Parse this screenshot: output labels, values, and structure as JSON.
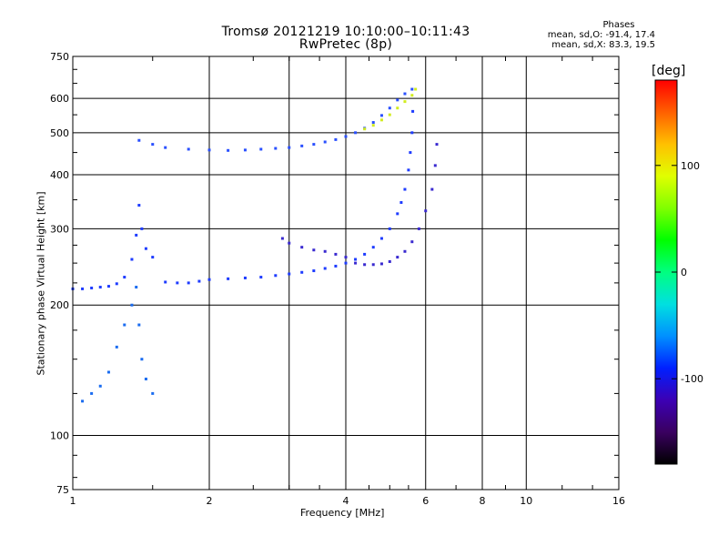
{
  "chart_data": {
    "type": "scatter",
    "title": "Tromsø 20121219 10:10:00–10:11:43",
    "subtitle": "RwPretec (8p)",
    "xlabel": "Frequency [MHz]",
    "ylabel": "Stationary phase Virtual Height [km]",
    "x_scale": "log",
    "y_scale": "log",
    "xlim": [
      1,
      16
    ],
    "ylim": [
      75,
      750
    ],
    "xticks": [
      1,
      2,
      4,
      6,
      8,
      10,
      16
    ],
    "xtick_labels": [
      "1",
      "2",
      "4",
      "6",
      "8",
      "10",
      "16"
    ],
    "xgrid_extra": [
      3
    ],
    "yticks": [
      75,
      100,
      200,
      300,
      400,
      500,
      600,
      750
    ],
    "ytick_labels": [
      "75",
      "100",
      "200",
      "300",
      "400",
      "500",
      "600",
      "750"
    ],
    "grid": true,
    "phase_legend": {
      "title": "Phases",
      "line_o": "mean, sd,O: -91.4, 17.4",
      "line_x": "mean, sd,X: 83.3, 19.5"
    },
    "colorbar": {
      "label": "[deg]",
      "range": [
        -180,
        180
      ],
      "ticks": [
        100,
        0,
        -100
      ],
      "tick_labels": [
        "100",
        "0",
        "-100"
      ],
      "colors": [
        "#000000",
        "#3a0060",
        "#3c00b4",
        "#0020ff",
        "#0090ff",
        "#00e0e0",
        "#00ff80",
        "#00ff00",
        "#80ff00",
        "#e0ff00",
        "#ffc000",
        "#ff6000",
        "#ff0000"
      ]
    },
    "series": [
      {
        "points": [
          [
            1.0,
            218
          ],
          [
            1.05,
            218
          ],
          [
            1.1,
            219
          ],
          [
            1.15,
            220
          ],
          [
            1.2,
            221
          ],
          [
            1.25,
            224
          ],
          [
            1.3,
            232
          ],
          [
            1.35,
            255
          ],
          [
            1.38,
            290
          ],
          [
            1.4,
            340
          ],
          [
            1.42,
            300
          ],
          [
            1.45,
            270
          ],
          [
            1.5,
            258
          ],
          [
            1.6,
            226
          ],
          [
            1.7,
            225
          ],
          [
            1.8,
            225
          ],
          [
            1.9,
            227
          ],
          [
            2.0,
            229
          ],
          [
            2.2,
            230
          ],
          [
            2.4,
            231
          ],
          [
            2.6,
            232
          ],
          [
            2.8,
            234
          ],
          [
            3.0,
            236
          ],
          [
            3.2,
            238
          ],
          [
            3.4,
            240
          ],
          [
            3.6,
            243
          ],
          [
            3.8,
            246
          ],
          [
            4.0,
            250
          ],
          [
            4.2,
            255
          ],
          [
            4.4,
            262
          ],
          [
            4.6,
            272
          ],
          [
            4.8,
            285
          ],
          [
            5.0,
            300
          ],
          [
            5.2,
            325
          ],
          [
            5.3,
            345
          ],
          [
            5.4,
            370
          ],
          [
            5.5,
            410
          ],
          [
            5.55,
            450
          ],
          [
            5.6,
            500
          ],
          [
            5.62,
            560
          ]
        ]
      },
      {
        "points": [
          [
            1.4,
            480
          ],
          [
            1.5,
            470
          ],
          [
            1.6,
            462
          ],
          [
            1.8,
            458
          ],
          [
            2.0,
            456
          ],
          [
            2.2,
            455
          ],
          [
            2.4,
            456
          ],
          [
            2.6,
            458
          ],
          [
            2.8,
            460
          ],
          [
            3.0,
            462
          ],
          [
            3.2,
            466
          ],
          [
            3.4,
            470
          ],
          [
            3.6,
            476
          ],
          [
            3.8,
            482
          ],
          [
            4.0,
            490
          ],
          [
            4.2,
            500
          ],
          [
            4.4,
            512
          ],
          [
            4.6,
            528
          ],
          [
            4.8,
            548
          ],
          [
            5.0,
            570
          ],
          [
            5.2,
            595
          ],
          [
            5.4,
            615
          ],
          [
            5.6,
            630
          ]
        ]
      },
      {
        "points": [
          [
            1.05,
            120
          ],
          [
            1.1,
            125
          ],
          [
            1.15,
            130
          ],
          [
            1.2,
            140
          ],
          [
            1.25,
            160
          ],
          [
            1.3,
            180
          ],
          [
            1.35,
            200
          ],
          [
            1.38,
            220
          ],
          [
            1.4,
            180
          ],
          [
            1.42,
            150
          ],
          [
            1.45,
            135
          ],
          [
            1.5,
            125
          ]
        ]
      },
      {
        "points": [
          [
            2.9,
            285
          ],
          [
            3.0,
            278
          ],
          [
            3.2,
            272
          ],
          [
            3.4,
            268
          ],
          [
            3.6,
            266
          ],
          [
            3.8,
            262
          ],
          [
            4.0,
            258
          ],
          [
            4.2,
            250
          ],
          [
            4.4,
            248
          ],
          [
            4.6,
            248
          ],
          [
            4.8,
            249
          ],
          [
            5.0,
            252
          ],
          [
            5.2,
            258
          ],
          [
            5.4,
            266
          ],
          [
            5.6,
            280
          ],
          [
            5.8,
            300
          ],
          [
            6.0,
            330
          ],
          [
            6.2,
            370
          ],
          [
            6.3,
            420
          ],
          [
            6.35,
            470
          ]
        ]
      },
      {
        "points": [
          [
            4.4,
            510
          ],
          [
            4.6,
            520
          ],
          [
            4.8,
            535
          ],
          [
            5.0,
            550
          ],
          [
            5.2,
            570
          ],
          [
            5.4,
            590
          ],
          [
            5.6,
            610
          ],
          [
            5.7,
            630
          ]
        ]
      }
    ]
  }
}
